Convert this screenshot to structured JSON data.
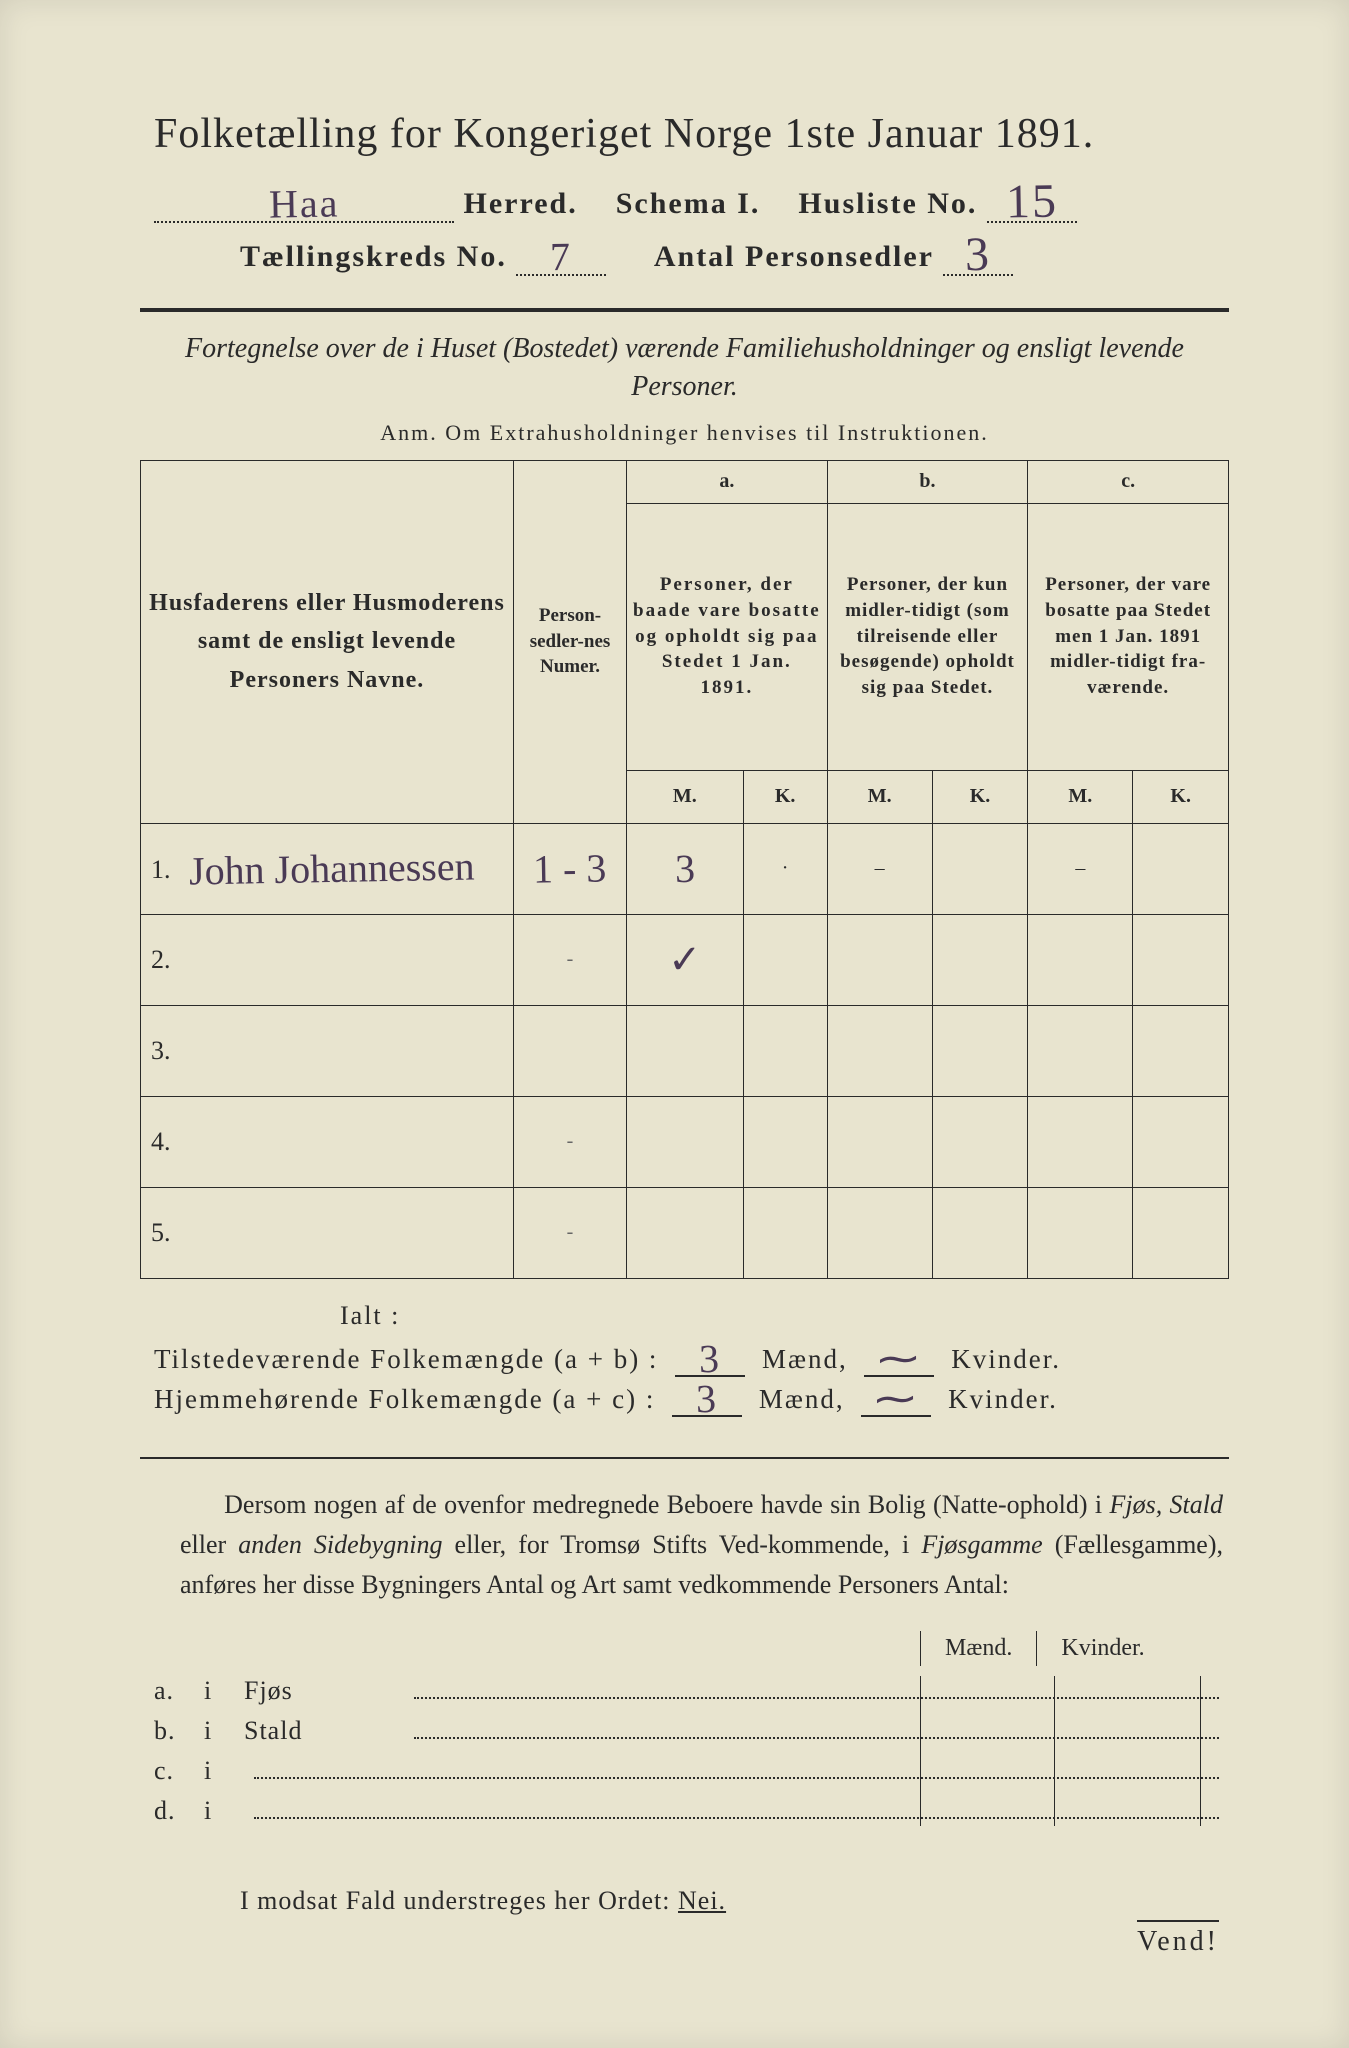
{
  "colors": {
    "paper": "#e8e4cf",
    "ink": "#2a2a2a",
    "handwriting": "#4a3a55"
  },
  "header": {
    "title": "Folketælling for Kongeriget Norge 1ste Januar 1891.",
    "herred_label": "Herred.",
    "herred_value": "Haa",
    "schema_label": "Schema I.",
    "husliste_label": "Husliste No.",
    "husliste_value": "15",
    "kreds_label": "Tællingskreds No.",
    "kreds_value": "7",
    "antal_label": "Antal Personsedler",
    "antal_value": "3"
  },
  "subtitle": "Fortegnelse over de i Huset (Bostedet) værende Familiehusholdninger og ensligt levende Personer.",
  "anm": "Anm.  Om Extrahusholdninger henvises til Instruktionen.",
  "table": {
    "col_name": "Husfaderens eller Husmoderens samt de ensligt levende Personers Navne.",
    "col_sedler": "Person-sedler-nes Numer.",
    "col_a_head": "a.",
    "col_a": "Personer, der baade vare bosatte og opholdt sig paa Stedet 1 Jan. 1891.",
    "col_b_head": "b.",
    "col_b": "Personer, der kun midler-tidigt (som tilreisende eller besøgende) opholdt sig paa Stedet.",
    "col_c_head": "c.",
    "col_c": "Personer, der vare bosatte paa Stedet men 1 Jan. 1891 midler-tidigt fra-værende.",
    "m": "M.",
    "k": "K.",
    "rows": [
      {
        "num": "1.",
        "name": "John Johannessen",
        "sedler": "1 - 3",
        "a_m": "3",
        "a_k": "·",
        "b_m": "–",
        "b_k": "",
        "c_m": "–",
        "c_k": ""
      },
      {
        "num": "2.",
        "name": "",
        "sedler": "-",
        "a_m": "✓",
        "a_k": "",
        "b_m": "",
        "b_k": "",
        "c_m": "",
        "c_k": ""
      },
      {
        "num": "3.",
        "name": "",
        "sedler": "",
        "a_m": "",
        "a_k": "",
        "b_m": "",
        "b_k": "",
        "c_m": "",
        "c_k": ""
      },
      {
        "num": "4.",
        "name": "",
        "sedler": "-",
        "a_m": "",
        "a_k": "",
        "b_m": "",
        "b_k": "",
        "c_m": "",
        "c_k": ""
      },
      {
        "num": "5.",
        "name": "",
        "sedler": "-",
        "a_m": "",
        "a_k": "",
        "b_m": "",
        "b_k": "",
        "c_m": "",
        "c_k": ""
      }
    ]
  },
  "ialt": "Ialt :",
  "sums": {
    "line1_label": "Tilstedeværende Folkemængde (a + b) :",
    "line2_label": "Hjemmehørende Folkemængde (a + c) :",
    "maend": "Mænd,",
    "kvinder": "Kvinder.",
    "line1_m": "3",
    "line1_k": "⁓",
    "line2_m": "3",
    "line2_k": "⁓"
  },
  "para": "Dersom nogen af de ovenfor medregnede Beboere havde sin Bolig (Natte-ophold) i Fjøs, Stald eller anden Sidebygning eller, for Tromsø Stifts Ved-kommende, i Fjøsgamme (Fællesgamme), anføres her disse Bygningers Antal og Art samt vedkommende Personers Antal:",
  "mk": {
    "m": "Mænd.",
    "k": "Kvinder."
  },
  "bldg": {
    "a": {
      "lbl": "a.",
      "i": "i",
      "name": "Fjøs"
    },
    "b": {
      "lbl": "b.",
      "i": "i",
      "name": "Stald"
    },
    "c": {
      "lbl": "c.",
      "i": "i",
      "name": ""
    },
    "d": {
      "lbl": "d.",
      "i": "i",
      "name": ""
    }
  },
  "footer": "I modsat Fald understreges her Ordet:",
  "nei": "Nei.",
  "vend": "Vend!"
}
